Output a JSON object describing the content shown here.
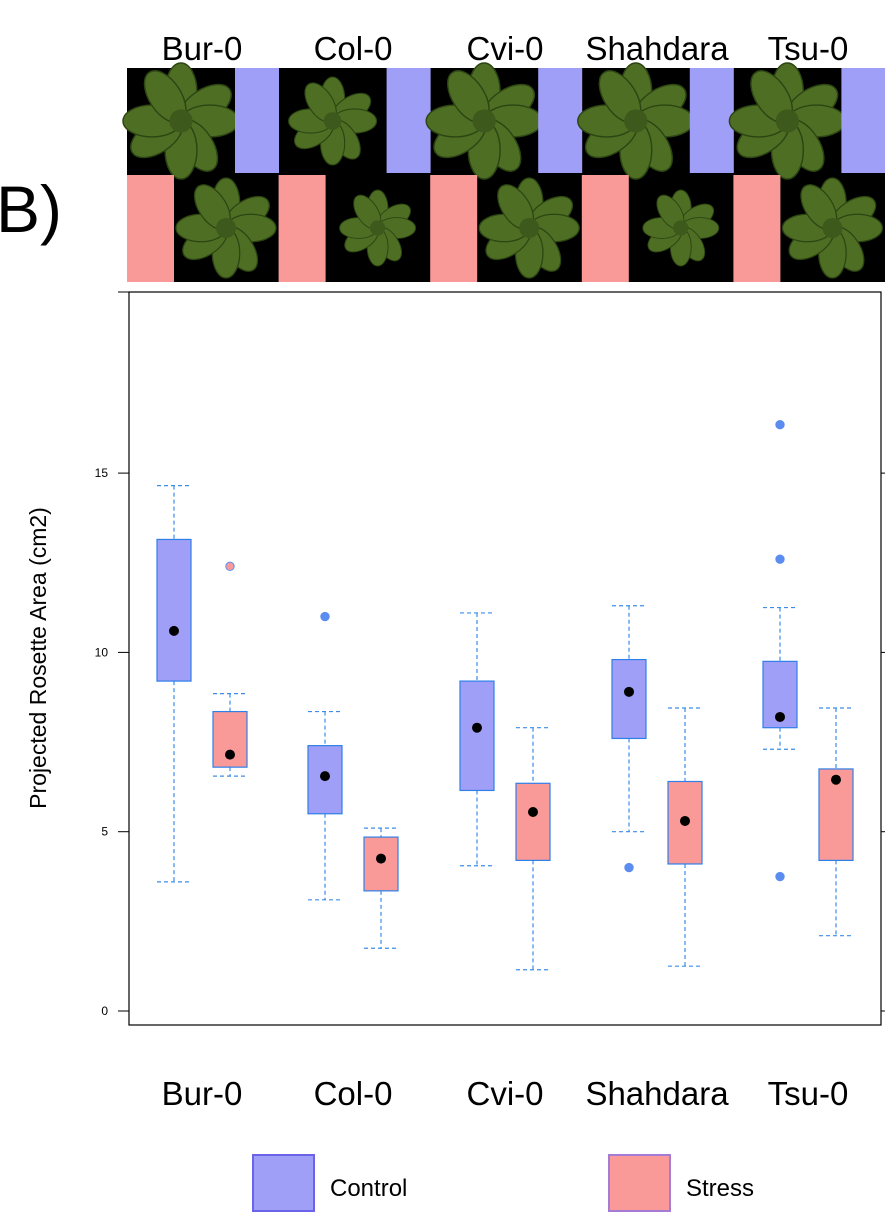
{
  "panel_label": "B)",
  "top_labels": [
    "Bur-0",
    "Col-0",
    "Cvi-0",
    "Shahdara",
    "Tsu-0"
  ],
  "colors": {
    "control_fill": "#a09ff7",
    "control_border": "#2f7fe8",
    "stress_fill": "#f99a98",
    "whisker": "#3d8de8",
    "outlier": "#5b8df0",
    "mean_point": "#000000",
    "photo_bg": "#000000"
  },
  "chart_data": {
    "type": "box",
    "ylabel": "Projected Rosette Area (cm2)",
    "xlabel": "",
    "ylim": [
      -1.2,
      20.5
    ],
    "yticks": [
      0,
      5,
      10,
      15
    ],
    "categories": [
      "Bur-0",
      "Col-0",
      "Cvi-0",
      "Shahdara",
      "Tsu-0"
    ],
    "series": [
      {
        "name": "Control",
        "boxes": [
          {
            "whisker_low": 3.6,
            "q1": 9.2,
            "q3": 13.15,
            "whisker_high": 14.65,
            "mean": 10.6,
            "outliers": []
          },
          {
            "whisker_low": 3.1,
            "q1": 5.5,
            "q3": 7.4,
            "whisker_high": 8.35,
            "mean": 6.55,
            "outliers": [
              11.0
            ]
          },
          {
            "whisker_low": 4.05,
            "q1": 6.15,
            "q3": 9.2,
            "whisker_high": 11.1,
            "mean": 7.9,
            "outliers": []
          },
          {
            "whisker_low": 5.0,
            "q1": 7.6,
            "q3": 9.8,
            "whisker_high": 11.3,
            "mean": 8.9,
            "outliers": [
              4.0
            ]
          },
          {
            "whisker_low": 7.3,
            "q1": 7.9,
            "q3": 9.75,
            "whisker_high": 11.25,
            "mean": 8.2,
            "outliers": [
              3.75,
              12.6,
              16.35
            ]
          }
        ]
      },
      {
        "name": "Stress",
        "boxes": [
          {
            "whisker_low": 6.55,
            "q1": 6.8,
            "q3": 8.35,
            "whisker_high": 8.85,
            "mean": 7.15,
            "outliers": [
              12.4
            ]
          },
          {
            "whisker_low": 1.75,
            "q1": 3.35,
            "q3": 4.85,
            "whisker_high": 5.1,
            "mean": 4.25,
            "outliers": []
          },
          {
            "whisker_low": 1.15,
            "q1": 4.2,
            "q3": 6.35,
            "whisker_high": 7.9,
            "mean": 5.55,
            "outliers": []
          },
          {
            "whisker_low": 1.25,
            "q1": 4.1,
            "q3": 6.4,
            "whisker_high": 8.45,
            "mean": 5.3,
            "outliers": []
          },
          {
            "whisker_low": 2.1,
            "q1": 4.2,
            "q3": 6.75,
            "whisker_high": 8.45,
            "mean": 6.45,
            "outliers": []
          }
        ]
      }
    ],
    "legend": {
      "entries": [
        "Control",
        "Stress"
      ],
      "placement": "bottom"
    },
    "grid": false
  }
}
